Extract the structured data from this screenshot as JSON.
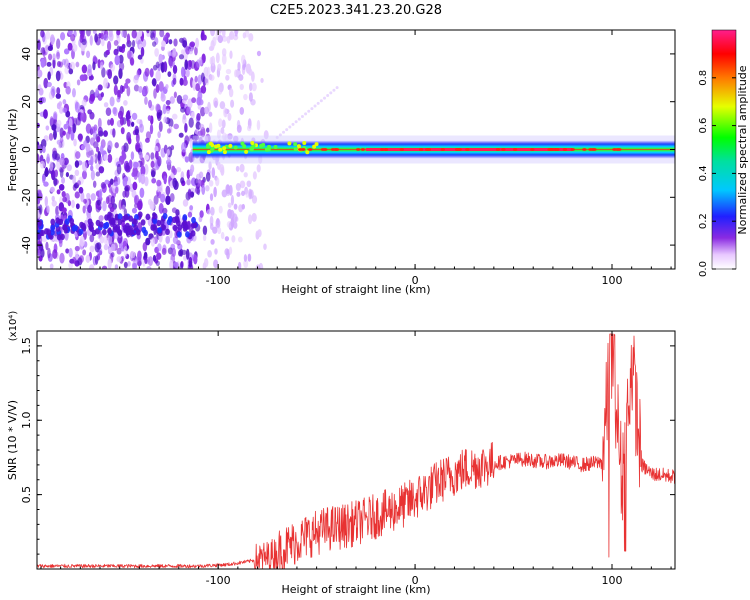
{
  "title": "C2E5.2023.341.23.20.G28",
  "colors": {
    "snr_line": "#e83232",
    "axis": "#000000"
  },
  "chart_data": [
    {
      "type": "heatmap",
      "title": "C2E5.2023.341.23.20.G28",
      "xlabel": "Height of straight line (km)",
      "ylabel": "Frequency (Hz)",
      "xlim": [
        -192,
        132
      ],
      "ylim": [
        -50,
        50
      ],
      "x_ticks": [
        -100,
        0,
        100
      ],
      "x_tick_labels": [
        "-100",
        "0",
        "100"
      ],
      "y_ticks": [
        -40,
        -20,
        0,
        20,
        40
      ],
      "y_tick_labels": [
        "-40",
        "-20",
        "0",
        "20",
        "40"
      ],
      "colorbar": {
        "label": "Normalized spectral amplitude",
        "range": [
          0,
          1
        ],
        "ticks": [
          0.0,
          0.2,
          0.4,
          0.6,
          0.8
        ],
        "tick_labels": [
          "0.0",
          "0.2",
          "0.4",
          "0.6",
          "0.8"
        ],
        "colormap": "rainbow (white-violet-blue-cyan-green-yellow-red-magenta)"
      },
      "features": {
        "carrier_line": {
          "frequency_hz": 0,
          "x_start": -113,
          "x_end": 132,
          "peak_amplitude": 0.9
        },
        "noise_region": {
          "x_start": -192,
          "x_end": -75,
          "amplitude_range": [
            0.1,
            0.3
          ]
        },
        "lower_band": {
          "frequency_hz": -34,
          "x_start": -192,
          "x_end": -110
        }
      }
    },
    {
      "type": "line",
      "xlabel": "Height of straight line (km)",
      "ylabel": "SNR (10 * V/V)",
      "y_multiplier": "(x10⁴)",
      "xlim": [
        -192,
        132
      ],
      "ylim": [
        0,
        1.6
      ],
      "x_ticks": [
        -100,
        0,
        100
      ],
      "x_tick_labels": [
        "-100",
        "0",
        "100"
      ],
      "y_ticks": [
        0.5,
        1.0,
        1.5
      ],
      "y_tick_labels": [
        "0.5",
        "1.0",
        "1.5"
      ],
      "series": [
        {
          "x": [
            -192,
            -150,
            -110,
            -95,
            -85,
            -75,
            -65,
            -55,
            -45,
            -35,
            -25,
            -15,
            -5,
            5,
            15,
            25,
            35,
            45,
            55,
            65,
            75,
            85,
            95,
            100,
            105,
            110,
            115,
            120,
            132
          ],
          "y": [
            0.02,
            0.02,
            0.02,
            0.03,
            0.05,
            0.08,
            0.15,
            0.22,
            0.27,
            0.29,
            0.33,
            0.38,
            0.43,
            0.52,
            0.61,
            0.67,
            0.7,
            0.72,
            0.74,
            0.72,
            0.73,
            0.7,
            0.72,
            1.52,
            0.58,
            1.4,
            0.7,
            0.64,
            0.62
          ]
        }
      ]
    }
  ]
}
